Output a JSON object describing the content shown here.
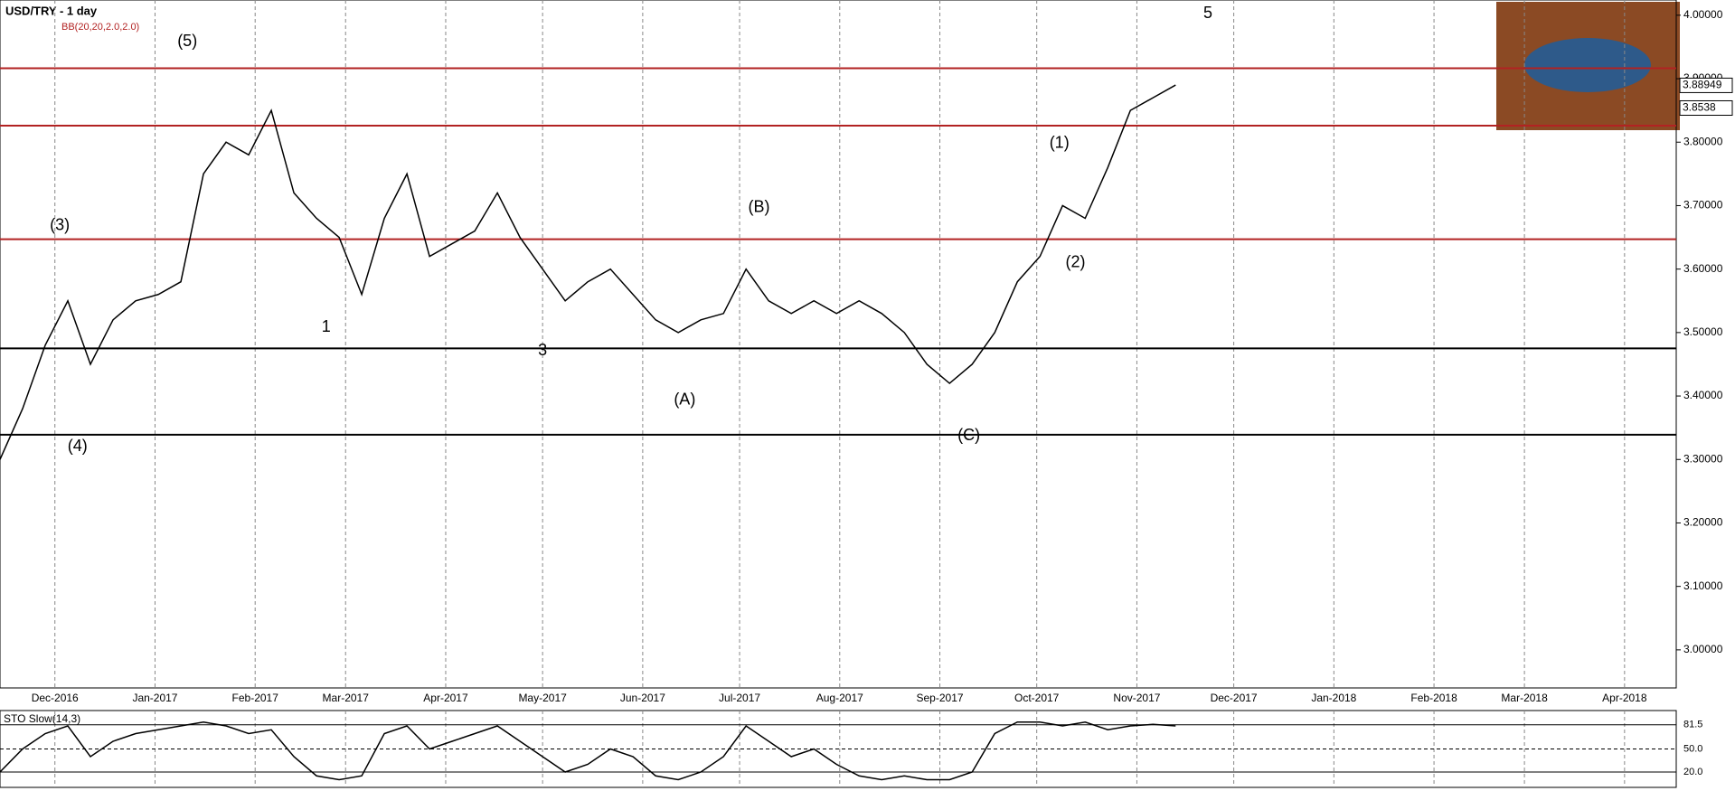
{
  "chart_data": {
    "type": "line",
    "title": "USD/TRY - 1 day",
    "indicator_label": "BB(20,20,2.0,2.0)",
    "xlim": [
      0,
      519
    ],
    "xticks": [
      {
        "value": 17,
        "label": "Dec-2016"
      },
      {
        "value": 48,
        "label": "Jan-2017"
      },
      {
        "value": 79,
        "label": "Feb-2017"
      },
      {
        "value": 107,
        "label": "Mar-2017"
      },
      {
        "value": 138,
        "label": "Apr-2017"
      },
      {
        "value": 168,
        "label": "May-2017"
      },
      {
        "value": 199,
        "label": "Jun-2017"
      },
      {
        "value": 229,
        "label": "Jul-2017"
      },
      {
        "value": 260,
        "label": "Aug-2017"
      },
      {
        "value": 291,
        "label": "Sep-2017"
      },
      {
        "value": 321,
        "label": "Oct-2017"
      },
      {
        "value": 352,
        "label": "Nov-2017"
      },
      {
        "value": 382,
        "label": "Dec-2017"
      },
      {
        "value": 413,
        "label": "Jan-2018"
      },
      {
        "value": 444,
        "label": "Feb-2018"
      },
      {
        "value": 472,
        "label": "Mar-2018"
      },
      {
        "value": 503,
        "label": "Apr-2018"
      }
    ],
    "ylim": [
      2.94,
      4.024
    ],
    "yticks": [
      {
        "value": 3.0,
        "label": "3.00000"
      },
      {
        "value": 3.1,
        "label": "3.10000"
      },
      {
        "value": 3.2,
        "label": "3.20000"
      },
      {
        "value": 3.3,
        "label": "3.30000"
      },
      {
        "value": 3.4,
        "label": "3.40000"
      },
      {
        "value": 3.5,
        "label": "3.50000"
      },
      {
        "value": 3.6,
        "label": "3.60000"
      },
      {
        "value": 3.7,
        "label": "3.70000"
      },
      {
        "value": 3.8,
        "label": "3.80000"
      },
      {
        "value": 3.9,
        "label": "3.90000"
      },
      {
        "value": 4.0,
        "label": "4.00000"
      }
    ],
    "grid": true,
    "x": [
      0,
      7,
      14,
      21,
      28,
      35,
      42,
      49,
      56,
      63,
      70,
      77,
      84,
      91,
      98,
      105,
      112,
      119,
      126,
      133,
      140,
      147,
      154,
      161,
      168,
      175,
      182,
      189,
      196,
      203,
      210,
      217,
      224,
      231,
      238,
      245,
      252,
      259,
      266,
      273,
      280,
      287,
      294,
      301,
      308,
      315,
      322,
      329,
      336,
      343,
      350,
      357,
      364
    ],
    "series": [
      {
        "name": "USD/TRY",
        "color": "#000000",
        "values": [
          3.3,
          3.38,
          3.48,
          3.55,
          3.45,
          3.52,
          3.55,
          3.56,
          3.58,
          3.75,
          3.8,
          3.78,
          3.85,
          3.72,
          3.68,
          3.65,
          3.56,
          3.68,
          3.75,
          3.62,
          3.64,
          3.66,
          3.72,
          3.65,
          3.6,
          3.55,
          3.58,
          3.6,
          3.56,
          3.52,
          3.5,
          3.52,
          3.53,
          3.6,
          3.55,
          3.53,
          3.55,
          3.53,
          3.55,
          3.53,
          3.5,
          3.45,
          3.42,
          3.45,
          3.5,
          3.58,
          3.62,
          3.7,
          3.68,
          3.76,
          3.85,
          3.87,
          3.89
        ]
      }
    ],
    "levels": [
      {
        "value": 3.9165,
        "color": "#b22222"
      },
      {
        "value": 3.826,
        "color": "#b22222"
      },
      {
        "value": 3.647,
        "color": "#b22222"
      },
      {
        "value": 3.475,
        "color": "#000000"
      },
      {
        "value": 3.339,
        "color": "#000000"
      }
    ],
    "price_labels": [
      3.88949,
      3.8538
    ],
    "annotations": [
      {
        "text": "(3)",
        "x": 18.5,
        "y": 3.668
      },
      {
        "text": "(5)",
        "x": 58,
        "y": 3.958
      },
      {
        "text": "(4)",
        "x": 24,
        "y": 3.32
      },
      {
        "text": "1",
        "x": 101,
        "y": 3.508
      },
      {
        "text": "3",
        "x": 168,
        "y": 3.471
      },
      {
        "text": "(A)",
        "x": 212,
        "y": 3.393
      },
      {
        "text": "(B)",
        "x": 235,
        "y": 3.697
      },
      {
        "text": "(C)",
        "x": 300,
        "y": 3.337
      },
      {
        "text": "(1)",
        "x": 328,
        "y": 3.798
      },
      {
        "text": "(2)",
        "x": 333,
        "y": 3.61
      },
      {
        "text": "5",
        "x": 374,
        "y": 4.002
      }
    ],
    "stochastic": {
      "label": "STO Slow(14,3)",
      "ylim": [
        0,
        100
      ],
      "yticks": [
        81.5,
        {
          "value": 50,
          "label": "50.0"
        },
        {
          "value": 20,
          "label": "20.0"
        }
      ],
      "color": "#000000",
      "values": [
        20,
        50,
        70,
        80,
        40,
        60,
        70,
        75,
        80,
        85,
        80,
        70,
        75,
        40,
        15,
        10,
        15,
        70,
        80,
        50,
        60,
        70,
        80,
        60,
        40,
        20,
        30,
        50,
        40,
        15,
        10,
        20,
        40,
        80,
        60,
        40,
        50,
        30,
        15,
        10,
        15,
        10,
        10,
        20,
        70,
        85,
        85,
        80,
        85,
        75,
        80,
        82,
        80
      ]
    }
  }
}
